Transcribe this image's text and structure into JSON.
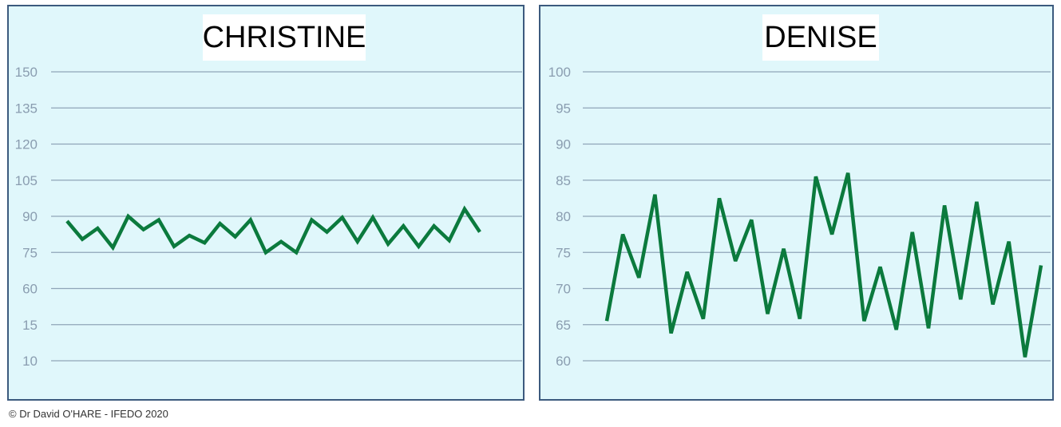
{
  "chart_data": [
    {
      "type": "line",
      "title": "CHRISTINE",
      "y_ticks": [
        "150",
        "135",
        "120",
        "105",
        "90",
        "75",
        "60",
        "15",
        "10"
      ],
      "grid": true,
      "line_color": "#0b7a3d",
      "gridline_color": "#8fa5b8",
      "background": "#e0f7fb",
      "values": [
        88,
        80.5,
        85,
        77,
        90,
        84.5,
        88.5,
        77.5,
        82,
        79,
        87,
        81.5,
        88.5,
        75,
        79.5,
        75,
        88.5,
        83.5,
        89.5,
        79.5,
        89.5,
        78.5,
        86,
        77.5,
        86,
        80,
        93,
        83.5
      ]
    },
    {
      "type": "line",
      "title": "DENISE",
      "ylim": [
        60,
        100
      ],
      "y_ticks": [
        "100",
        "95",
        "90",
        "85",
        "80",
        "75",
        "70",
        "65",
        "60"
      ],
      "grid": true,
      "line_color": "#0b7a3d",
      "gridline_color": "#8fa5b8",
      "background": "#e0f7fb",
      "values": [
        65.5,
        77.5,
        71.5,
        83,
        63.8,
        72.3,
        65.8,
        82.5,
        73.8,
        79.5,
        66.5,
        75.5,
        65.8,
        85.5,
        77.5,
        86,
        65.5,
        73,
        64.3,
        77.8,
        64.5,
        81.5,
        68.5,
        82,
        67.8,
        76.5,
        60.5,
        73.2
      ]
    }
  ],
  "footer": {
    "copyright": "© Dr David O'HARE - IFEDO 2020"
  }
}
